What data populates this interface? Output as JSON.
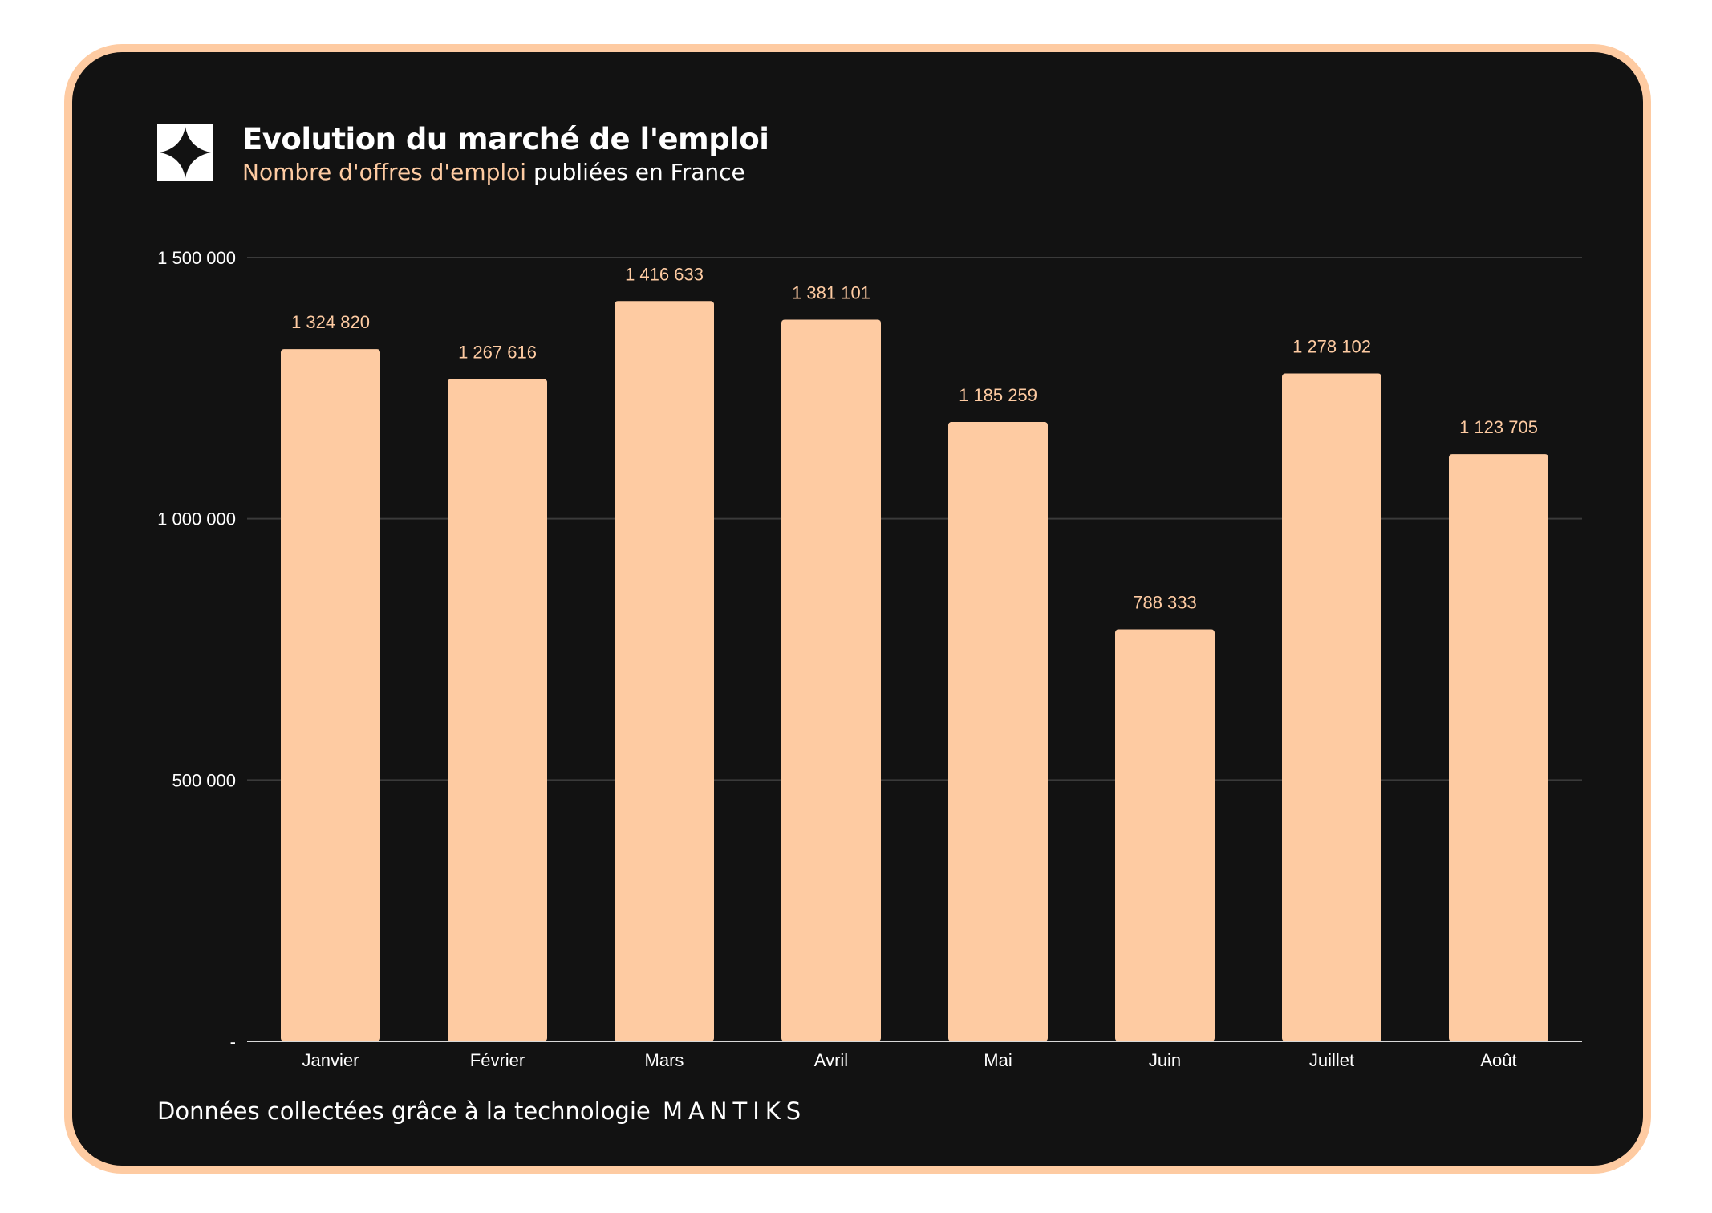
{
  "header": {
    "title": "Evolution du marché de l'emploi",
    "subtitle_highlight": "Nombre d'offres d'emploi",
    "subtitle_rest": " publiées en France"
  },
  "footer": {
    "text": "Données collectées grâce à la technologie ",
    "brand": "MANTIKS"
  },
  "colors": {
    "background": "#121212",
    "border": "#fecba2",
    "bar": "#fecba2",
    "grid": "#3a3a3a",
    "axis_text": "#ffffff"
  },
  "icons": {
    "logo": "four-point-star-icon"
  },
  "chart_data": {
    "type": "bar",
    "categories": [
      "Janvier",
      "Février",
      "Mars",
      "Avril",
      "Mai",
      "Juin",
      "Juillet",
      "Août"
    ],
    "values": [
      1324820,
      1267616,
      1416633,
      1381101,
      1185259,
      788333,
      1278102,
      1123705
    ],
    "value_labels": [
      "1 324 820",
      "1 267 616",
      "1 416 633",
      "1 381 101",
      "1 185 259",
      "788 333",
      "1 278 102",
      "1 123 705"
    ],
    "y_ticks": [
      0,
      500000,
      1000000,
      1500000
    ],
    "y_tick_labels": [
      "-",
      "500 000",
      "1 000 000",
      "1 500 000"
    ],
    "ylim": [
      0,
      1500000
    ],
    "grid": true,
    "legend": "none"
  }
}
